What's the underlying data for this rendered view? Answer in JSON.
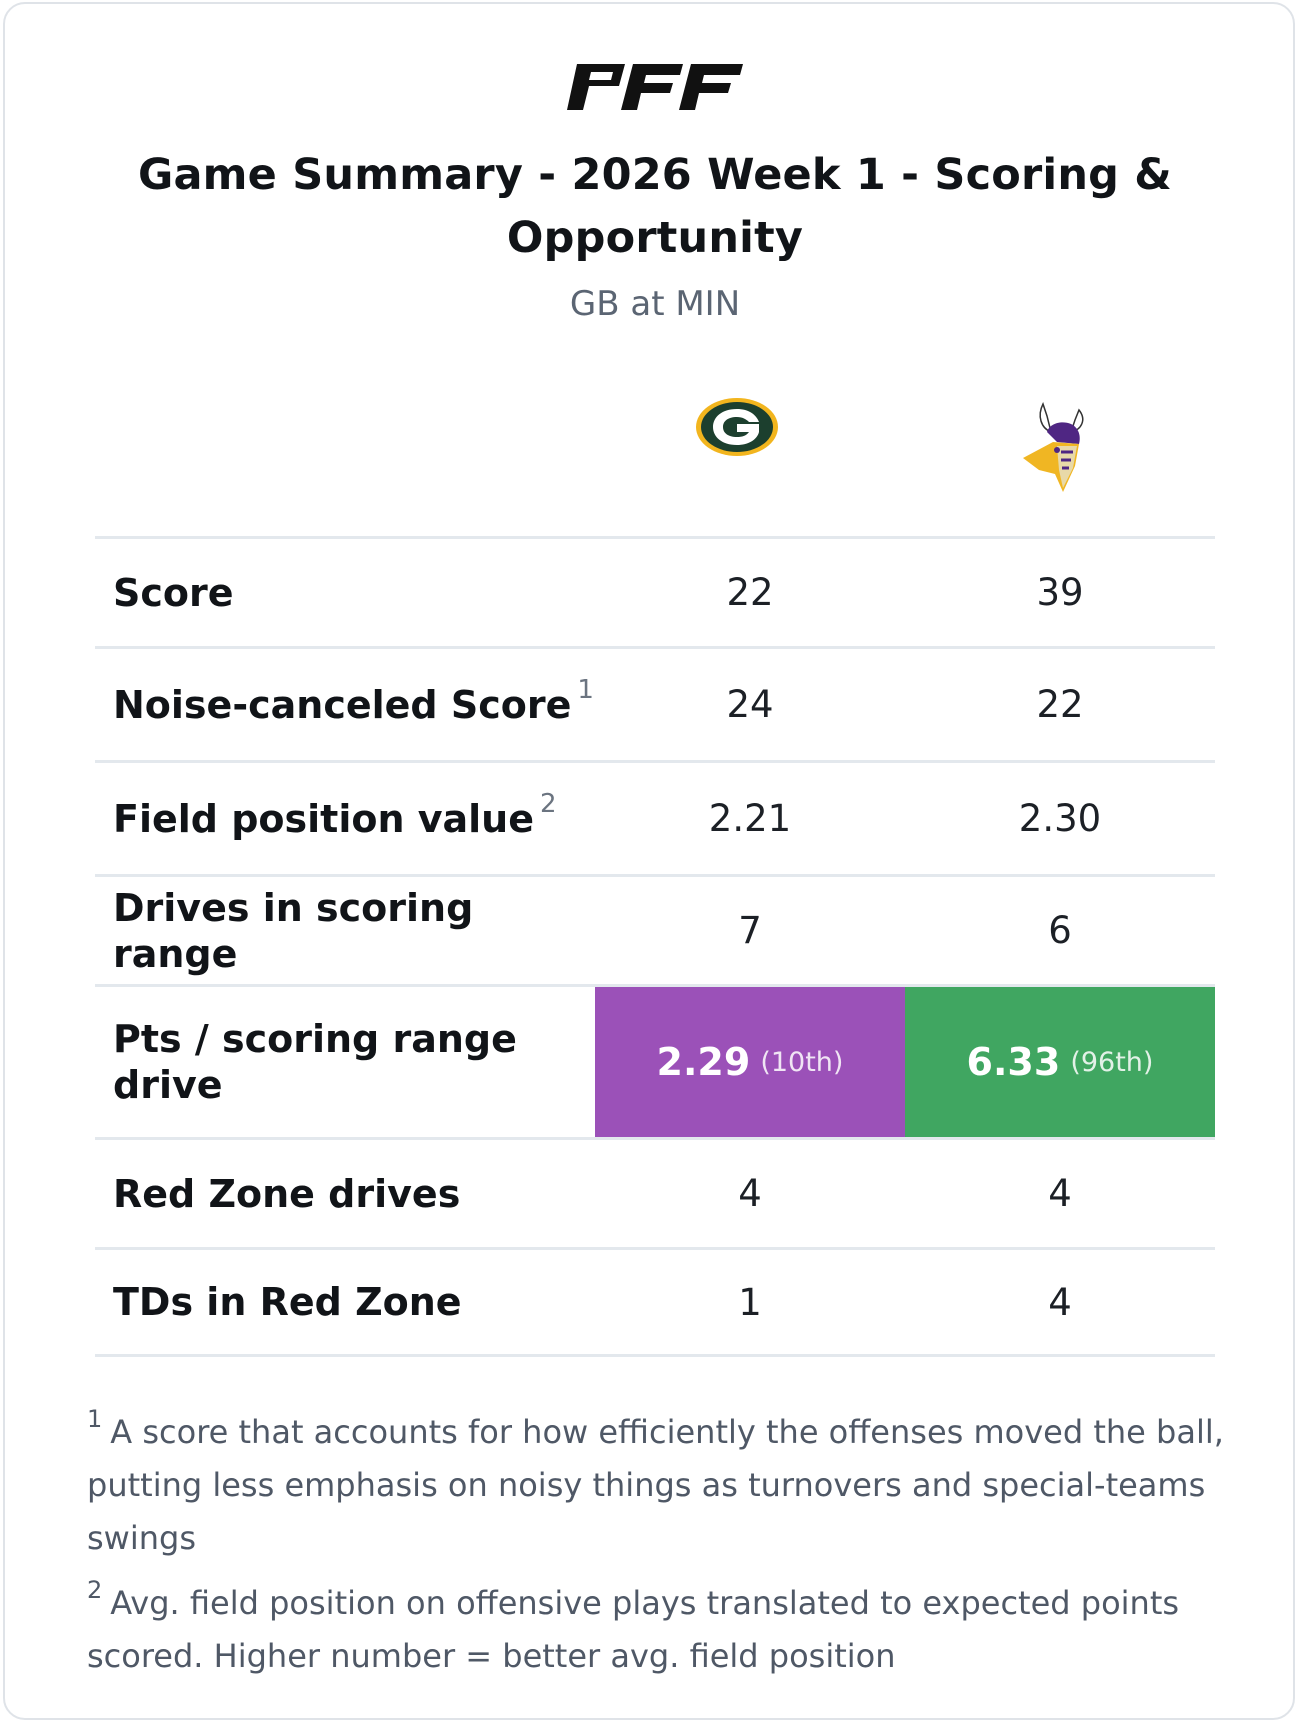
{
  "brand": {
    "logo_text": "PFF"
  },
  "header": {
    "title": "Game Summary - 2026 Week 1 - Scoring & Opportunity",
    "subtitle": "GB at MIN"
  },
  "teams": {
    "away": {
      "icon": "packers-logo-icon",
      "primary": "#1c3f2e",
      "secondary": "#f2b51e"
    },
    "home": {
      "icon": "vikings-logo-icon",
      "primary": "#4f2683",
      "secondary": "#f0b623"
    }
  },
  "table": {
    "rows": [
      {
        "label": "Score",
        "note": "",
        "away": "22",
        "home": "39"
      },
      {
        "label": "Noise-canceled Score",
        "note": "1",
        "away": "24",
        "home": "22"
      },
      {
        "label": "Field position value",
        "note": "2",
        "away": "2.21",
        "home": "2.30"
      },
      {
        "label": "Drives in scoring range",
        "note": "",
        "away": "7",
        "home": "6"
      },
      {
        "label": "Pts / scoring range drive",
        "note": "",
        "away": "2.29",
        "away_rank": "(10th)",
        "away_color": "#9b51b8",
        "home": "6.33",
        "home_rank": "(96th)",
        "home_color": "#40a661"
      },
      {
        "label": "Red Zone drives",
        "note": "",
        "away": "4",
        "home": "4"
      },
      {
        "label": "TDs in Red Zone",
        "note": "",
        "away": "1",
        "home": "4"
      }
    ]
  },
  "footnotes": [
    {
      "num": "1",
      "text": "A score that accounts for how efficiently the offenses moved the ball, putting less emphasis on noisy things as turnovers and special-teams swings"
    },
    {
      "num": "2",
      "text": "Avg. field position on offensive plays translated to expected points scored. Higher number = better avg. field position"
    }
  ]
}
